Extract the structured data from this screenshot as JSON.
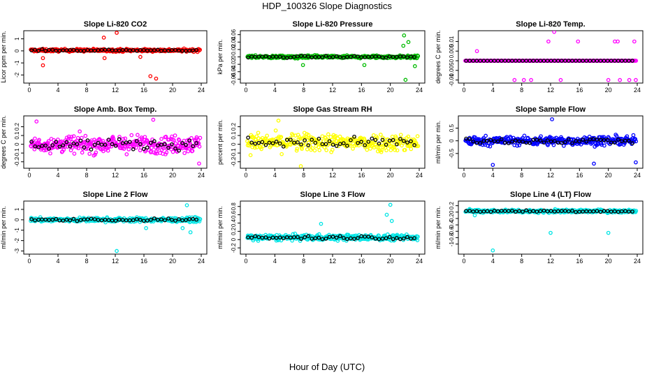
{
  "figure": {
    "title": "HDP_100326  Slope Diagnostics",
    "xlabel": "Hour of Day (UTC)"
  },
  "chart_data": [
    {
      "type": "scatter",
      "title": "Slope Li-820 CO2",
      "ylabel": "Licor ppm per min.",
      "color": "#ff0000",
      "xlim": [
        0,
        24
      ],
      "xticks": [
        0,
        4,
        8,
        12,
        16,
        20,
        24
      ],
      "ylim": [
        -2.5,
        1.5
      ],
      "yticks": [
        -2,
        -1,
        0,
        1
      ],
      "band": {
        "center": 0.05,
        "spread": 0.22
      },
      "outliers": [
        [
          1.9,
          -0.6
        ],
        [
          1.9,
          -1.2
        ],
        [
          10.4,
          1.1
        ],
        [
          10.5,
          -0.6
        ],
        [
          12.2,
          1.5
        ],
        [
          16.9,
          -2.1
        ],
        [
          17.7,
          -2.3
        ],
        [
          15.5,
          -0.5
        ]
      ]
    },
    {
      "type": "scatter",
      "title": "Slope Li-820 Pressure",
      "ylabel": "kPa per min.",
      "color": "#00bb00",
      "xlim": [
        0,
        24
      ],
      "xticks": [
        0,
        4,
        8,
        12,
        16,
        20,
        24
      ],
      "ylim": [
        -0.065,
        0.065
      ],
      "yticks": [
        -0.06,
        -0.04,
        -0.02,
        0,
        0.02,
        0.04,
        0.06
      ],
      "band": {
        "center": 0.0,
        "spread": 0.008
      },
      "outliers": [
        [
          7.9,
          -0.022
        ],
        [
          16.4,
          -0.022
        ],
        [
          21.9,
          0.058
        ],
        [
          22.1,
          -0.062
        ],
        [
          22.5,
          0.04
        ],
        [
          23.4,
          -0.025
        ],
        [
          21.8,
          0.03
        ]
      ]
    },
    {
      "type": "scatter",
      "title": "Slope Li-820 Temp.",
      "ylabel": "degrees C per min.",
      "color": "#ff00ff",
      "xlim": [
        0,
        24
      ],
      "xticks": [
        0,
        4,
        8,
        12,
        16,
        20,
        24
      ],
      "ylim": [
        -0.0105,
        0.0145
      ],
      "yticks": [
        -0.01,
        -0.005,
        0,
        0.005,
        0.01
      ],
      "band": {
        "center": 0.0,
        "spread": 0.0
      },
      "outliers": [
        [
          1.8,
          0.005
        ],
        [
          7.0,
          -0.01
        ],
        [
          8.3,
          -0.01
        ],
        [
          9.3,
          -0.01
        ],
        [
          11.7,
          0.01
        ],
        [
          12.5,
          0.015
        ],
        [
          13.4,
          -0.01
        ],
        [
          15.8,
          0.01
        ],
        [
          20.0,
          -0.01
        ],
        [
          20.9,
          0.01
        ],
        [
          21.3,
          0.01
        ],
        [
          21.6,
          -0.01
        ],
        [
          22.9,
          -0.01
        ],
        [
          23.6,
          0.01
        ],
        [
          23.8,
          -0.01
        ]
      ]
    },
    {
      "type": "scatter",
      "title": "Slope Amb. Box Temp.",
      "ylabel": "degrees C per min.",
      "color": "#ff00ff",
      "xlim": [
        0,
        24
      ],
      "xticks": [
        0,
        4,
        8,
        12,
        16,
        20,
        24
      ],
      "ylim": [
        -0.25,
        0.3
      ],
      "yticks": [
        -0.2,
        -0.1,
        0,
        0.1,
        0.2
      ],
      "band": {
        "center": 0.0,
        "spread": 0.2
      },
      "outliers": [
        [
          1.0,
          0.26
        ],
        [
          17.3,
          0.28
        ],
        [
          23.7,
          -0.22
        ]
      ]
    },
    {
      "type": "scatter",
      "title": "Slope Gas Stream RH",
      "ylabel": "percent per min.",
      "color": "#ffff00",
      "xlim": [
        0,
        24
      ],
      "xticks": [
        0,
        4,
        8,
        12,
        16,
        20,
        24
      ],
      "ylim": [
        -0.25,
        0.3
      ],
      "yticks": [
        -0.2,
        -0.1,
        0,
        0.1,
        0.2
      ],
      "band": {
        "center": 0.02,
        "spread": 0.2
      },
      "outliers": [
        [
          4.5,
          0.27
        ],
        [
          7.6,
          -0.25
        ]
      ]
    },
    {
      "type": "scatter",
      "title": "Slope Sample Flow",
      "ylabel": "ml/min per min.",
      "color": "#0000ff",
      "xlim": [
        0,
        24
      ],
      "xticks": [
        0,
        4,
        8,
        12,
        16,
        20,
        24
      ],
      "ylim": [
        -1.0,
        0.9
      ],
      "yticks": [
        -0.5,
        0,
        0.5
      ],
      "band": {
        "center": 0.0,
        "spread": 0.35
      },
      "outliers": [
        [
          4.0,
          -0.95
        ],
        [
          12.2,
          0.85
        ],
        [
          18.0,
          -0.9
        ],
        [
          23.8,
          -0.85
        ]
      ]
    },
    {
      "type": "scatter",
      "title": "Slope Line 2 Flow",
      "ylabel": "ml/min per min.",
      "color": "#00e5e5",
      "xlim": [
        0,
        24
      ],
      "xticks": [
        0,
        4,
        8,
        12,
        16,
        20,
        24
      ],
      "ylim": [
        -3.1,
        1.6
      ],
      "yticks": [
        -3,
        -2,
        -1,
        0,
        1
      ],
      "band": {
        "center": 0.0,
        "spread": 0.4
      },
      "outliers": [
        [
          12.2,
          -3.0
        ],
        [
          22.0,
          1.4
        ],
        [
          22.5,
          -1.2
        ],
        [
          21.4,
          -0.8
        ],
        [
          16.3,
          -0.8
        ]
      ]
    },
    {
      "type": "scatter",
      "title": "Slope Line 3 Flow",
      "ylabel": "ml/min per min.",
      "color": "#00e5e5",
      "xlim": [
        0,
        24
      ],
      "xticks": [
        0,
        4,
        8,
        12,
        16,
        20,
        24
      ],
      "ylim": [
        -0.3,
        0.88
      ],
      "yticks": [
        -0.2,
        0,
        0.2,
        0.4,
        0.6,
        0.8
      ],
      "band": {
        "center": 0.05,
        "spread": 0.14
      },
      "outliers": [
        [
          20.0,
          0.84
        ],
        [
          19.5,
          0.6
        ],
        [
          20.2,
          0.45
        ],
        [
          10.4,
          0.38
        ]
      ]
    },
    {
      "type": "scatter",
      "title": "Slope Line 4 (LT) Flow",
      "ylabel": "ml/min per min.",
      "color": "#00e5e5",
      "xlim": [
        0,
        24
      ],
      "xticks": [
        0,
        4,
        8,
        12,
        16,
        20,
        24
      ],
      "ylim": [
        -1.25,
        0.28
      ],
      "yticks": [
        -1.0,
        -0.8,
        -0.6,
        -0.4,
        -0.2,
        0,
        0.2
      ],
      "band": {
        "center": 0.03,
        "spread": 0.1
      },
      "outliers": [
        [
          4.0,
          -1.2
        ],
        [
          12.0,
          -0.65
        ],
        [
          20.0,
          -0.65
        ],
        [
          1.5,
          -0.1
        ]
      ]
    }
  ]
}
